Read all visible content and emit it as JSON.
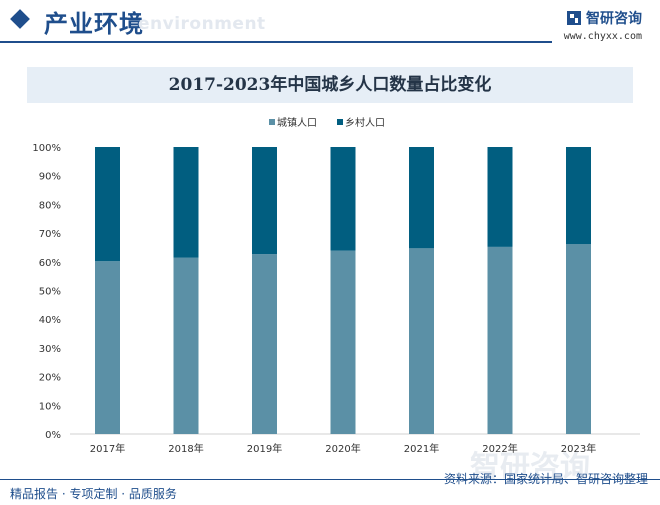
{
  "header": {
    "title": "产业环境",
    "subtitle": "environment"
  },
  "brand": {
    "name": "智研咨询",
    "url": "www.chyxx.com"
  },
  "footer": {
    "left_text": "精品报告 · 专项定制 · 品质服务",
    "source": "资料来源：国家统计局、智研咨询整理"
  },
  "watermark": {
    "text": "智研咨询"
  },
  "colors": {
    "urban": "#5b90a6",
    "rural": "#015e80",
    "accent": "#1f4e8c"
  },
  "chart_data": {
    "type": "bar",
    "stacked": true,
    "percent": true,
    "title": "2017-2023年中国城乡人口数量占比变化",
    "categories": [
      "2017年",
      "2018年",
      "2019年",
      "2020年",
      "2021年",
      "2022年",
      "2023年"
    ],
    "series": [
      {
        "name": "城镇人口",
        "values": [
          60.2,
          61.5,
          62.7,
          63.9,
          64.7,
          65.2,
          66.2
        ]
      },
      {
        "name": "乡村人口",
        "values": [
          39.8,
          38.5,
          37.3,
          36.1,
          35.3,
          34.8,
          33.8
        ]
      }
    ],
    "ylim": [
      0,
      100
    ],
    "yticks": [
      "0%",
      "10%",
      "20%",
      "30%",
      "40%",
      "50%",
      "60%",
      "70%",
      "80%",
      "90%",
      "100%"
    ],
    "legend_position": "top-center",
    "grid": false
  }
}
